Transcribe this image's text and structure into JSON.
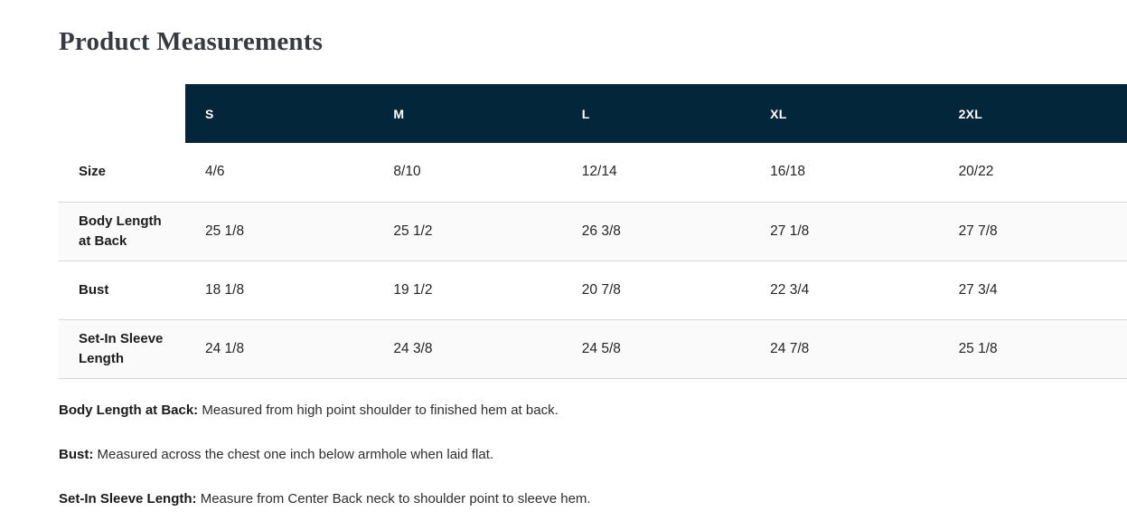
{
  "page": {
    "title": "Product Measurements"
  },
  "table": {
    "columns": [
      "S",
      "M",
      "L",
      "XL",
      "2XL"
    ],
    "rows": [
      {
        "label": "Size",
        "values": [
          "4/6",
          "8/10",
          "12/14",
          "16/18",
          "20/22"
        ]
      },
      {
        "label": "Body Length at Back",
        "values": [
          "25 1/8",
          "25 1/2",
          "26 3/8",
          "27 1/8",
          "27 7/8"
        ]
      },
      {
        "label": "Bust",
        "values": [
          "18 1/8",
          "19 1/2",
          "20 7/8",
          "22 3/4",
          "27 3/4"
        ]
      },
      {
        "label": "Set-In Sleeve Length",
        "values": [
          "24 1/8",
          "24 3/8",
          "24 5/8",
          "24 7/8",
          "25 1/8"
        ]
      }
    ]
  },
  "footnotes": [
    {
      "term": "Body Length at Back:",
      "text": " Measured from high point shoulder to finished hem at back."
    },
    {
      "term": "Bust:",
      "text": " Measured across the chest one inch below armhole when laid flat."
    },
    {
      "term": "Set-In Sleeve Length:",
      "text": " Measure from Center Back neck to shoulder point to sleeve hem."
    }
  ],
  "colors": {
    "header_bg": "#03263a",
    "header_text": "#ffffff",
    "row_alt_bg": "#fafafa",
    "row_border": "#d8d8d8",
    "title_text": "#373b3f"
  }
}
